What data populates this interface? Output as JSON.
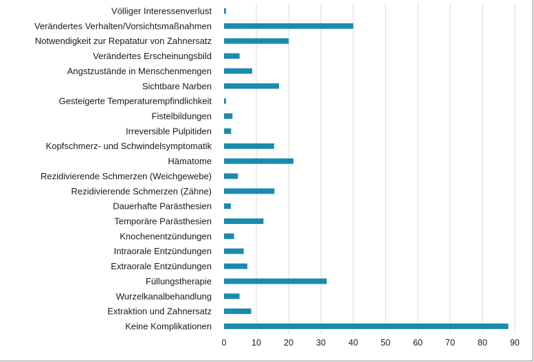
{
  "chart_data": {
    "type": "bar",
    "orientation": "horizontal",
    "categories": [
      "Völliger Interessenverlust",
      "Verändertes Verhalten/Vorsichtsmaßnahmen",
      "Notwendigkeit zur Repatatur von Zahnersatz",
      "Verändertes Erscheinungsbild",
      "Angstzustände in Menschenmengen",
      "Sichtbare Narben",
      "Gesteigerte Temperaturempfindlichkeit",
      "Fistelbildungen",
      "Irreversible Pulpitiden",
      "Kopfschmerz- und Schwindelsymptomatik",
      "Hämatome",
      "Rezidivierende Schmerzen (Weichgewebe)",
      "Rezidivierende Schmerzen (Zähne)",
      "Dauerhafte Parästhesien",
      "Temporäre Parästhesien",
      "Knochenentzündungen",
      "Intraorale Entzündungen",
      "Extraorale Entzündungen",
      "Füllungstherapie",
      "Wurzelkanalbehandlung",
      "Extraktion und Zahnersatz",
      "Keine Komplikationen"
    ],
    "values": [
      0.6,
      40,
      20,
      4.8,
      8.7,
      17,
      0.6,
      2.6,
      2.2,
      15.5,
      21.5,
      4.3,
      15.6,
      2.1,
      12.2,
      3.1,
      6.1,
      7.2,
      31.8,
      4.8,
      8.4,
      88
    ],
    "xlim": [
      0,
      90
    ],
    "xticks": [
      "0",
      "10",
      "20",
      "30",
      "40",
      "50",
      "60",
      "70",
      "80",
      "90"
    ],
    "grid": true,
    "bar_color": "#1a8bad",
    "title": "",
    "xlabel": "",
    "ylabel": ""
  }
}
